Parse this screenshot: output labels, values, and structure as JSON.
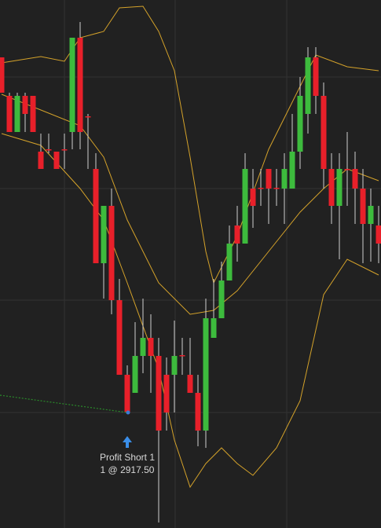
{
  "chart_data": {
    "type": "candlestick",
    "ylim": [
      0,
      672
    ],
    "yticks": [
      147,
      290,
      432,
      574
    ],
    "grid": true,
    "up_color": "#3dbb3d",
    "down_color": "#e8202a",
    "wick_color": "#d0d0d0",
    "line_color": "#d4a22a",
    "open": [
      599,
      550,
      504,
      550,
      550,
      479,
      482,
      479,
      482,
      504,
      624,
      524,
      457,
      337,
      410,
      290,
      195,
      172,
      219,
      242,
      219,
      195,
      195,
      220,
      195,
      172,
      124,
      242,
      267,
      315,
      385,
      362,
      432,
      433,
      457,
      433,
      432,
      432,
      479,
      527,
      599,
      550,
      457,
      410,
      457,
      457,
      432,
      387,
      385
    ],
    "high": [
      599,
      554,
      554,
      554,
      550,
      502,
      502,
      479,
      502,
      624,
      644,
      527,
      477,
      410,
      432,
      317,
      207,
      262,
      292,
      272,
      242,
      217,
      264,
      242,
      242,
      195,
      292,
      317,
      339,
      385,
      410,
      477,
      457,
      457,
      457,
      457,
      477,
      527,
      574,
      612,
      612,
      567,
      477,
      477,
      504,
      479,
      457,
      432,
      410
    ],
    "low": [
      554,
      504,
      504,
      504,
      504,
      457,
      477,
      457,
      457,
      482,
      482,
      457,
      337,
      292,
      272,
      195,
      147,
      172,
      197,
      172,
      7,
      124,
      147,
      195,
      172,
      104,
      102,
      242,
      267,
      315,
      339,
      362,
      382,
      410,
      387,
      410,
      387,
      432,
      457,
      502,
      527,
      432,
      387,
      342,
      410,
      387,
      337,
      339,
      337
    ],
    "close": [
      554,
      504,
      550,
      527,
      504,
      457,
      481,
      457,
      481,
      624,
      504,
      523,
      337,
      410,
      290,
      195,
      147,
      219,
      242,
      219,
      124,
      147,
      219,
      219,
      172,
      124,
      267,
      267,
      315,
      362,
      362,
      457,
      410,
      432,
      432,
      432,
      457,
      479,
      550,
      599,
      550,
      457,
      410,
      457,
      456,
      432,
      387,
      410,
      362
    ],
    "lines": [
      {
        "x": [
          0,
          5,
          8,
          10,
          13,
          15,
          18,
          20,
          22,
          24,
          26,
          27,
          30,
          34,
          37,
          40,
          44,
          48
        ],
        "values": [
          592,
          600,
          594,
          624,
          632,
          662,
          664,
          632,
          582,
          472,
          352,
          312,
          372,
          482,
          542,
          602,
          587,
          582
        ]
      },
      {
        "x": [
          0,
          5,
          10,
          13,
          16,
          20,
          24,
          27,
          30,
          34,
          38,
          41,
          44,
          48
        ],
        "values": [
          552,
          532,
          512,
          472,
          392,
          312,
          272,
          277,
          302,
          352,
          402,
          432,
          457,
          442
        ]
      },
      {
        "x": [
          0,
          5,
          10,
          13,
          16,
          20,
          22,
          24,
          26,
          28,
          30,
          32,
          35,
          38,
          41,
          44,
          48
        ],
        "values": [
          502,
          487,
          432,
          392,
          312,
          202,
          112,
          52,
          82,
          102,
          82,
          67,
          102,
          162,
          297,
          342,
          322
        ]
      }
    ],
    "annotations": [
      "Profit Short 1",
      "1 @ 2917.50"
    ]
  }
}
